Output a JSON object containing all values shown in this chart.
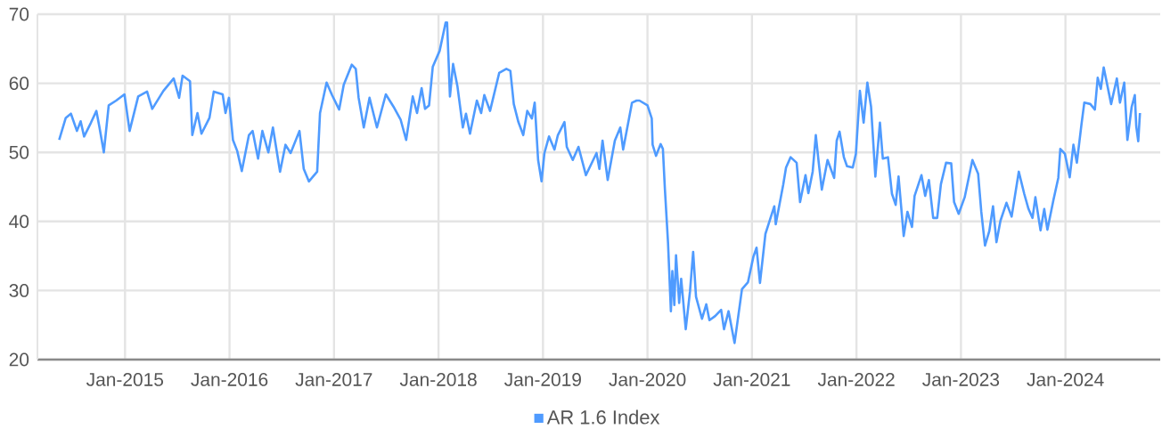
{
  "chart_data": {
    "type": "line",
    "xlim": [
      "2014-03-01",
      "2024-11-28"
    ],
    "ylim": [
      20,
      70
    ],
    "yticks": [
      20,
      30,
      40,
      50,
      60,
      70
    ],
    "xticks": [
      {
        "value": "2015-01-01",
        "label": "Jan-2015"
      },
      {
        "value": "2016-01-01",
        "label": "Jan-2016"
      },
      {
        "value": "2017-01-01",
        "label": "Jan-2017"
      },
      {
        "value": "2018-01-01",
        "label": "Jan-2018"
      },
      {
        "value": "2019-01-01",
        "label": "Jan-2019"
      },
      {
        "value": "2020-01-01",
        "label": "Jan-2020"
      },
      {
        "value": "2021-01-01",
        "label": "Jan-2021"
      },
      {
        "value": "2022-01-01",
        "label": "Jan-2022"
      },
      {
        "value": "2023-01-01",
        "label": "Jan-2023"
      },
      {
        "value": "2024-01-01",
        "label": "Jan-2024"
      }
    ],
    "grid": true,
    "legend": "bottom",
    "x": [
      "2014-05-16",
      "2014-06-08",
      "2014-06-26",
      "2014-07-17",
      "2014-07-30",
      "2014-08-11",
      "2014-09-04",
      "2014-09-23",
      "2014-10-03",
      "2014-10-19",
      "2014-11-05",
      "2014-12-01",
      "2014-12-30",
      "2015-01-17",
      "2015-02-16",
      "2015-03-19",
      "2015-04-06",
      "2015-05-15",
      "2015-06-20",
      "2015-07-09",
      "2015-07-21",
      "2015-08-16",
      "2015-08-24",
      "2015-09-11",
      "2015-09-25",
      "2015-10-23",
      "2015-11-07",
      "2015-12-08",
      "2015-12-18",
      "2015-12-30",
      "2016-01-13",
      "2016-01-28",
      "2016-02-13",
      "2016-03-09",
      "2016-03-22",
      "2016-04-10",
      "2016-04-25",
      "2016-05-16",
      "2016-06-01",
      "2016-06-26",
      "2016-07-15",
      "2016-08-02",
      "2016-09-02",
      "2016-09-17",
      "2016-10-05",
      "2016-11-03",
      "2016-11-13",
      "2016-12-06",
      "2016-12-25",
      "2017-01-19",
      "2017-02-04",
      "2017-03-04",
      "2017-03-18",
      "2017-03-28",
      "2017-04-15",
      "2017-05-05",
      "2017-05-31",
      "2017-07-01",
      "2017-07-28",
      "2017-08-22",
      "2017-09-10",
      "2017-10-03",
      "2017-10-18",
      "2017-11-03",
      "2017-11-15",
      "2017-11-29",
      "2017-12-12",
      "2018-01-05",
      "2018-01-26",
      "2018-01-31",
      "2018-02-10",
      "2018-02-21",
      "2018-03-08",
      "2018-03-27",
      "2018-04-07",
      "2018-04-21",
      "2018-05-15",
      "2018-05-30",
      "2018-06-10",
      "2018-06-30",
      "2018-08-01",
      "2018-08-26",
      "2018-09-09",
      "2018-09-21",
      "2018-10-07",
      "2018-10-24",
      "2018-11-07",
      "2018-11-23",
      "2018-12-03",
      "2018-12-15",
      "2018-12-27",
      "2019-01-06",
      "2019-01-22",
      "2019-02-10",
      "2019-02-22",
      "2019-03-17",
      "2019-03-25",
      "2019-04-15",
      "2019-05-05",
      "2019-05-31",
      "2019-07-07",
      "2019-07-17",
      "2019-07-28",
      "2019-08-15",
      "2019-09-09",
      "2019-09-28",
      "2019-10-08",
      "2019-11-08",
      "2019-11-24",
      "2019-12-04",
      "2020-01-01",
      "2020-01-16",
      "2020-01-19",
      "2020-01-31",
      "2020-02-16",
      "2020-02-24",
      "2020-03-02",
      "2020-03-13",
      "2020-03-23",
      "2020-03-28",
      "2020-04-04",
      "2020-04-10",
      "2020-04-21",
      "2020-04-28",
      "2020-05-14",
      "2020-05-29",
      "2020-06-09",
      "2020-06-19",
      "2020-07-10",
      "2020-07-25",
      "2020-08-05",
      "2020-08-25",
      "2020-09-15",
      "2020-09-25",
      "2020-10-11",
      "2020-11-01",
      "2020-11-11",
      "2020-11-27",
      "2020-12-18",
      "2021-01-06",
      "2021-01-17",
      "2021-01-29",
      "2021-02-17",
      "2021-03-20",
      "2021-03-25",
      "2021-04-20",
      "2021-04-30",
      "2021-05-16",
      "2021-06-06",
      "2021-06-18",
      "2021-07-07",
      "2021-07-17",
      "2021-08-01",
      "2021-08-12",
      "2021-08-22",
      "2021-09-02",
      "2021-09-22",
      "2021-10-15",
      "2021-10-24",
      "2021-11-03",
      "2021-11-18",
      "2021-11-29",
      "2021-12-19",
      "2021-12-30",
      "2022-01-13",
      "2022-01-26",
      "2022-02-08",
      "2022-02-21",
      "2022-03-08",
      "2022-03-24",
      "2022-04-03",
      "2022-04-21",
      "2022-05-05",
      "2022-05-18",
      "2022-05-28",
      "2022-06-15",
      "2022-06-28",
      "2022-07-14",
      "2022-07-23",
      "2022-08-16",
      "2022-08-29",
      "2022-09-11",
      "2022-09-26",
      "2022-10-10",
      "2022-10-23",
      "2022-11-10",
      "2022-11-28",
      "2022-12-08",
      "2022-12-24",
      "2023-01-14",
      "2023-02-10",
      "2023-03-02",
      "2023-03-13",
      "2023-03-26",
      "2023-04-10",
      "2023-04-23",
      "2023-05-05",
      "2023-05-19",
      "2023-06-09",
      "2023-06-27",
      "2023-07-22",
      "2023-08-10",
      "2023-08-25",
      "2023-09-08",
      "2023-09-18",
      "2023-10-06",
      "2023-10-19",
      "2023-10-30",
      "2023-11-20",
      "2023-12-07",
      "2023-12-14",
      "2023-12-30",
      "2024-01-16",
      "2024-01-29",
      "2024-02-10",
      "2024-02-26",
      "2024-03-07",
      "2024-03-28",
      "2024-04-13",
      "2024-04-23",
      "2024-05-04",
      "2024-05-14",
      "2024-06-09",
      "2024-06-29",
      "2024-07-10",
      "2024-07-25",
      "2024-08-05",
      "2024-08-20",
      "2024-08-31",
      "2024-09-05",
      "2024-09-12",
      "2024-09-18"
    ],
    "series": [
      {
        "name": "AR 1.6 Index",
        "color": "#4f9bff",
        "values": [
          51.8,
          55.0,
          55.6,
          53.1,
          54.5,
          52.3,
          54.3,
          56.0,
          53.8,
          50.0,
          56.8,
          57.5,
          58.4,
          53.1,
          58.1,
          58.8,
          56.3,
          58.9,
          60.7,
          57.9,
          61.1,
          60.3,
          52.5,
          55.7,
          52.7,
          55.0,
          58.8,
          58.4,
          55.7,
          57.9,
          51.8,
          50.2,
          47.3,
          52.5,
          53.1,
          49.1,
          53.1,
          50.0,
          53.6,
          47.2,
          51.1,
          49.9,
          53.1,
          47.6,
          45.8,
          47.2,
          55.7,
          60.1,
          58.3,
          56.2,
          59.8,
          62.7,
          62.1,
          57.9,
          53.6,
          57.9,
          53.6,
          58.4,
          56.6,
          54.7,
          51.8,
          58.1,
          55.7,
          59.3,
          56.3,
          56.8,
          62.4,
          64.7,
          68.8,
          68.8,
          58.1,
          62.8,
          59.6,
          53.6,
          55.6,
          52.7,
          57.5,
          55.7,
          58.3,
          56.0,
          61.5,
          62.1,
          61.8,
          57.0,
          54.4,
          52.5,
          56.0,
          54.9,
          57.2,
          48.9,
          45.8,
          49.9,
          52.3,
          50.4,
          52.5,
          54.4,
          50.8,
          48.9,
          50.8,
          46.7,
          49.9,
          47.6,
          51.7,
          46.0,
          51.7,
          53.6,
          50.4,
          57.2,
          57.5,
          57.5,
          56.8,
          54.9,
          51.1,
          49.5,
          51.2,
          50.5,
          44.7,
          36.9,
          27.0,
          32.8,
          27.9,
          35.1,
          28.2,
          31.7,
          24.4,
          29.9,
          35.6,
          29.1,
          25.9,
          28.0,
          25.7,
          26.3,
          27.2,
          24.4,
          27.0,
          22.4,
          25.4,
          30.2,
          31.2,
          34.9,
          36.2,
          31.1,
          38.2,
          42.2,
          39.6,
          45.3,
          47.8,
          49.3,
          48.5,
          42.8,
          46.7,
          44.1,
          47.2,
          52.5,
          48.6,
          44.6,
          48.9,
          46.3,
          51.7,
          53.0,
          49.3,
          48.0,
          47.8,
          49.8,
          58.9,
          54.3,
          60.1,
          56.6,
          46.5,
          54.3,
          49.1,
          49.3,
          44.0,
          42.4,
          46.5,
          37.9,
          41.4,
          39.2,
          43.7,
          46.7,
          43.7,
          46.0,
          40.5,
          40.5,
          45.4,
          48.5,
          48.4,
          42.8,
          41.1,
          43.5,
          48.9,
          46.9,
          41.4,
          36.5,
          38.6,
          42.2,
          37.0,
          40.1,
          42.7,
          40.7,
          47.2,
          44.0,
          41.8,
          40.5,
          43.5,
          38.7,
          41.8,
          38.8,
          43.1,
          46.3,
          50.5,
          49.8,
          46.4,
          51.1,
          48.5,
          54.0,
          57.2,
          57.0,
          56.2,
          60.8,
          59.2,
          62.3,
          57.0,
          60.7,
          57.2,
          60.1,
          51.8,
          56.6,
          58.3,
          53.8,
          51.6,
          55.7
        ]
      }
    ]
  }
}
